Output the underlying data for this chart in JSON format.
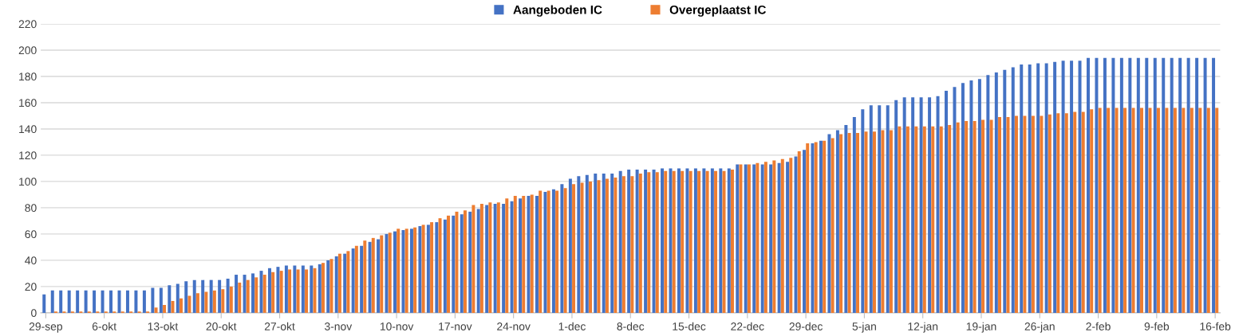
{
  "chart_data": {
    "type": "bar",
    "categories": [
      "29-sep",
      null,
      null,
      null,
      null,
      null,
      null,
      "6-okt",
      null,
      null,
      null,
      null,
      null,
      null,
      "13-okt",
      null,
      null,
      null,
      null,
      null,
      null,
      "20-okt",
      null,
      null,
      null,
      null,
      null,
      null,
      "27-okt",
      null,
      null,
      null,
      null,
      null,
      null,
      "3-nov",
      null,
      null,
      null,
      null,
      null,
      null,
      "10-nov",
      null,
      null,
      null,
      null,
      null,
      null,
      "17-nov",
      null,
      null,
      null,
      null,
      null,
      null,
      "24-nov",
      null,
      null,
      null,
      null,
      null,
      null,
      "1-dec",
      null,
      null,
      null,
      null,
      null,
      null,
      "8-dec",
      null,
      null,
      null,
      null,
      null,
      null,
      "15-dec",
      null,
      null,
      null,
      null,
      null,
      null,
      "22-dec",
      null,
      null,
      null,
      null,
      null,
      null,
      "29-dec",
      null,
      null,
      null,
      null,
      null,
      null,
      "5-jan",
      null,
      null,
      null,
      null,
      null,
      null,
      "12-jan",
      null,
      null,
      null,
      null,
      null,
      null,
      "19-jan",
      null,
      null,
      null,
      null,
      null,
      null,
      "26-jan",
      null,
      null,
      null,
      null,
      null,
      null,
      "2-feb",
      null,
      null,
      null,
      null,
      null,
      null,
      "9-feb",
      null,
      null,
      null,
      null,
      null,
      null,
      "16-feb"
    ],
    "series": [
      {
        "name": "Aangeboden IC",
        "color": "#4472c4",
        "values": [
          14,
          17,
          17,
          17,
          17,
          17,
          17,
          17,
          17,
          17,
          17,
          17,
          17,
          19,
          19,
          21,
          22,
          24,
          25,
          25,
          25,
          25,
          26,
          29,
          29,
          30,
          32,
          34,
          35,
          36,
          36,
          36,
          36,
          37,
          40,
          43,
          45,
          49,
          51,
          54,
          56,
          60,
          62,
          63,
          64,
          66,
          67,
          69,
          71,
          74,
          75,
          77,
          79,
          82,
          83,
          83,
          85,
          87,
          89,
          89,
          92,
          94,
          98,
          102,
          104,
          105,
          106,
          106,
          106,
          108,
          109,
          109,
          109,
          109,
          110,
          110,
          110,
          110,
          110,
          110,
          110,
          110,
          110,
          113,
          113,
          113,
          113,
          113,
          114,
          115,
          119,
          124,
          129,
          131,
          136,
          139,
          143,
          149,
          155,
          158,
          158,
          158,
          162,
          164,
          164,
          164,
          164,
          165,
          169,
          172,
          175,
          177,
          178,
          181,
          183,
          185,
          187,
          189,
          189,
          190,
          190,
          191,
          192,
          192,
          192,
          194,
          194,
          194,
          194,
          194,
          194,
          194,
          194,
          194,
          194,
          194,
          194,
          194,
          194,
          194,
          194
        ]
      },
      {
        "name": "Overgeplaatst IC",
        "color": "#ed7d31",
        "values": [
          0,
          1,
          1,
          1,
          1,
          1,
          1,
          1,
          1,
          1,
          1,
          1,
          1,
          4,
          6,
          9,
          11,
          13,
          15,
          16,
          17,
          18,
          20,
          23,
          25,
          27,
          29,
          31,
          32,
          33,
          33,
          33,
          34,
          38,
          41,
          45,
          47,
          51,
          55,
          57,
          59,
          61,
          64,
          64,
          65,
          67,
          69,
          72,
          74,
          77,
          78,
          82,
          83,
          84,
          84,
          87,
          89,
          89,
          90,
          93,
          93,
          93,
          95,
          98,
          99,
          100,
          101,
          102,
          103,
          104,
          104,
          106,
          107,
          107,
          108,
          108,
          108,
          108,
          108,
          108,
          108,
          108,
          109,
          113,
          113,
          114,
          115,
          116,
          117,
          118,
          123,
          129,
          130,
          131,
          133,
          136,
          137,
          137,
          138,
          138,
          139,
          139,
          142,
          142,
          142,
          142,
          142,
          142,
          143,
          145,
          146,
          146,
          147,
          147,
          149,
          149,
          150,
          150,
          150,
          150,
          151,
          152,
          152,
          153,
          153,
          155,
          156,
          156,
          156,
          156,
          156,
          156,
          156,
          156,
          156,
          156,
          156,
          156,
          156,
          156,
          156
        ]
      }
    ],
    "ylim": [
      0,
      220
    ],
    "yticks": [
      0,
      20,
      40,
      60,
      80,
      100,
      120,
      140,
      160,
      180,
      200,
      220
    ],
    "grid": "y",
    "legend": "top"
  }
}
